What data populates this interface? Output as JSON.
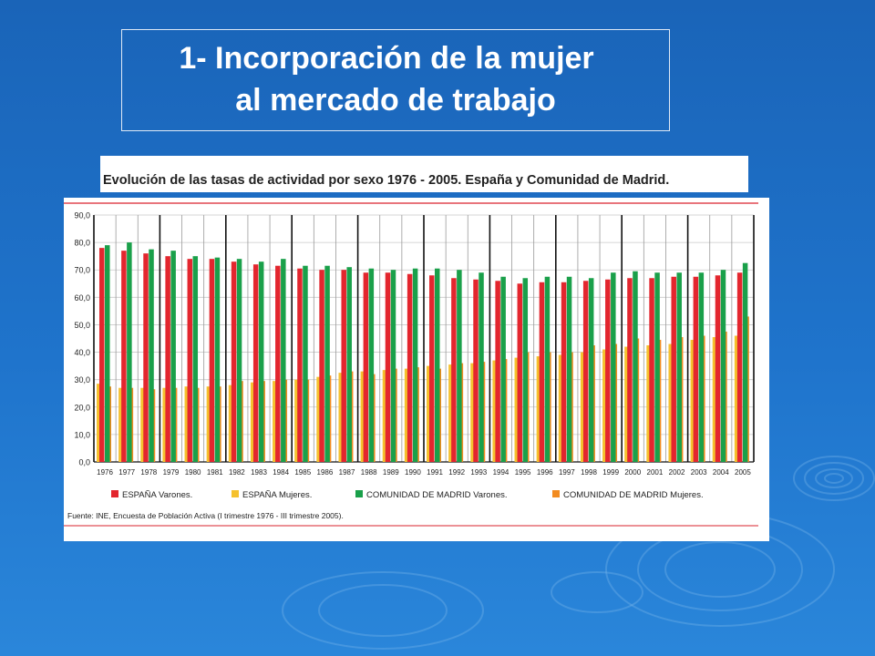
{
  "slide": {
    "title_line1": "1- Incorporación de la mujer",
    "title_line2": "al mercado de trabajo"
  },
  "chart_data": {
    "type": "bar",
    "title": "Evolución de las tasas de actividad por sexo 1976 - 2005. España y Comunidad de Madrid.",
    "source": "Fuente: INE, Encuesta de Población Activa (I trimestre 1976 - III trimestre 2005).",
    "ylim": [
      0,
      90
    ],
    "yticks": [
      "0,0",
      "10,0",
      "20,0",
      "30,0",
      "40,0",
      "50,0",
      "60,0",
      "70,0",
      "80,0",
      "90,0"
    ],
    "grid": true,
    "legend_position": "bottom",
    "categories": [
      "1976",
      "1977",
      "1978",
      "1979",
      "1980",
      "1981",
      "1982",
      "1983",
      "1984",
      "1985",
      "1986",
      "1987",
      "1988",
      "1989",
      "1990",
      "1991",
      "1992",
      "1993",
      "1994",
      "1995",
      "1996",
      "1997",
      "1998",
      "1999",
      "2000",
      "2001",
      "2002",
      "2003",
      "2004",
      "2005"
    ],
    "series": [
      {
        "name": "ESPAÑA Varones.",
        "color": "#e3262e",
        "values": [
          78,
          77,
          76,
          75,
          74,
          74,
          73,
          72,
          71.5,
          70.5,
          70,
          70,
          69,
          69,
          68.5,
          68,
          67,
          66.5,
          66,
          65,
          65.5,
          65.5,
          66,
          66.5,
          67,
          67,
          67.5,
          67.5,
          68,
          69
        ]
      },
      {
        "name": "ESPAÑA Mujeres.",
        "color": "#f5c12e",
        "values": [
          28.5,
          27,
          27,
          27,
          27.5,
          27.5,
          28,
          29,
          29.5,
          30,
          31,
          32.5,
          33,
          33.5,
          34,
          35,
          35.5,
          36,
          37,
          38,
          38.5,
          39,
          40,
          41,
          42,
          42.5,
          43,
          44.5,
          45.5,
          46
        ]
      },
      {
        "name": "COMUNIDAD DE MADRID Varones.",
        "color": "#1aa04a",
        "values": [
          79,
          80,
          77.5,
          77,
          75,
          74.5,
          74,
          73,
          74,
          71.5,
          71.5,
          71,
          70.5,
          70,
          70.5,
          70.5,
          70,
          69,
          67.5,
          67,
          67.5,
          67.5,
          67,
          69,
          69.5,
          69,
          69,
          69,
          70,
          72.5
        ]
      },
      {
        "name": "COMUNIDAD DE MADRID Mujeres.",
        "color": "#f28b20",
        "values": [
          27.5,
          27,
          26.5,
          27,
          27,
          27.5,
          29.5,
          29.5,
          30,
          30,
          31.5,
          33,
          32,
          34,
          34.5,
          34,
          36,
          36.5,
          37.5,
          40,
          40,
          40,
          42.5,
          43,
          45,
          44.5,
          45.5,
          46,
          47.5,
          53
        ]
      }
    ]
  }
}
